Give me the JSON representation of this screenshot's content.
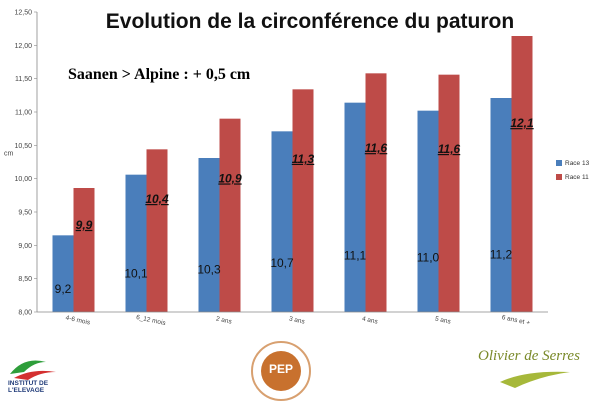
{
  "title": "Evolution de la circonférence du paturon",
  "annotation": "Saanen > Alpine : + 0,5 cm",
  "logos": {
    "institut": "INSTITUT DE L'ELEVAGE",
    "pep": "PEP",
    "olivier": "Olivier de Serres"
  },
  "chart_data": {
    "type": "bar",
    "ylabel": "cm",
    "ylim": [
      8.0,
      12.5
    ],
    "yticks": [
      "8,00",
      "8,50",
      "9,00",
      "9,50",
      "10,00",
      "10,50",
      "11,00",
      "11,50",
      "12,00",
      "12,50"
    ],
    "categories": [
      "4-6 mois",
      "6_12 mois",
      "2 ans",
      "3 ans",
      "4 ans",
      "5 ans",
      "6 ans et +"
    ],
    "series": [
      {
        "name": "Race 13",
        "color": "#4a7ebb",
        "values": [
          9.15,
          10.06,
          10.31,
          10.71,
          11.14,
          11.02,
          11.21
        ],
        "data_labels": [
          "9,2",
          "10,1",
          "10,3",
          "10,7",
          "11,1",
          "11,0",
          "11,2"
        ]
      },
      {
        "name": "Race 11",
        "color": "#be4b48",
        "values": [
          9.86,
          10.44,
          10.9,
          11.34,
          11.58,
          11.56,
          12.14
        ],
        "data_labels": [
          "9,9",
          "10,4",
          "10,9",
          "11,3",
          "11,6",
          "11,6",
          "12,1"
        ]
      }
    ],
    "legend": "right",
    "grid": false
  }
}
